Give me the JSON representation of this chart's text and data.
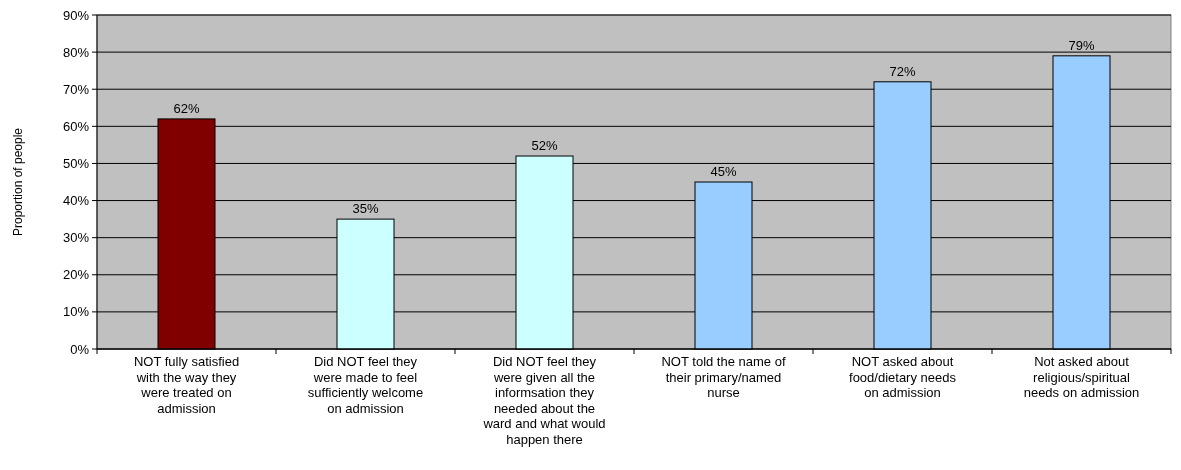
{
  "chart_data": {
    "type": "bar",
    "ylabel": "Proportion of people",
    "categories": [
      "NOT fully satisfied with the way they were treated on admission",
      "Did NOT feel they were made to feel sufficiently welcome on admission",
      "Did NOT feel they were given all the informsation they needed about the ward and what would happen there",
      "NOT told the name of their primary/named nurse",
      "NOT asked about food/dietary needs on admission",
      "Not asked about religious/spiritual needs on admission"
    ],
    "values": [
      62,
      35,
      52,
      45,
      72,
      79
    ],
    "colors": [
      "#800000",
      "#ccffff",
      "#ccffff",
      "#99ccff",
      "#99ccff",
      "#99ccff"
    ],
    "value_labels": [
      "62%",
      "35%",
      "52%",
      "45%",
      "72%",
      "79%"
    ],
    "ylim": [
      0,
      90
    ],
    "yticks": [
      {
        "value": 0,
        "label": "0%"
      },
      {
        "value": 10,
        "label": "10%"
      },
      {
        "value": 20,
        "label": "20%"
      },
      {
        "value": 30,
        "label": "30%"
      },
      {
        "value": 40,
        "label": "40%"
      },
      {
        "value": 50,
        "label": "50%"
      },
      {
        "value": 60,
        "label": "60%"
      },
      {
        "value": 70,
        "label": "70%"
      },
      {
        "value": 80,
        "label": "80%"
      },
      {
        "value": 90,
        "label": "90%"
      }
    ],
    "grid": "y"
  }
}
